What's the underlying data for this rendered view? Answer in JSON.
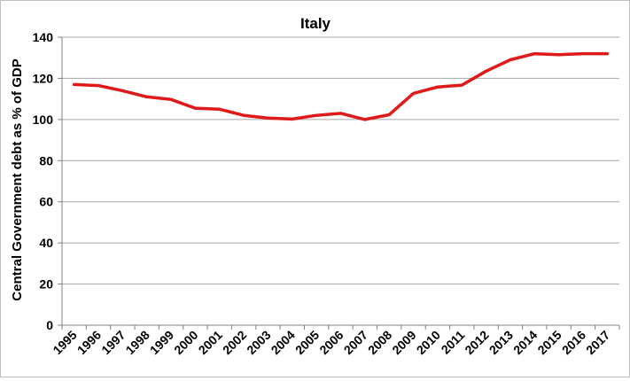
{
  "chart_data": {
    "type": "line",
    "title": "Italy",
    "xlabel": "",
    "ylabel": "Central Government debt as % of GDP",
    "ylim": [
      0,
      140
    ],
    "yticks": [
      0,
      20,
      40,
      60,
      80,
      100,
      120,
      140
    ],
    "grid": true,
    "legend": "none",
    "line_color": "#e0191b",
    "categories": [
      "1995",
      "1996",
      "1997",
      "1998",
      "1999",
      "2000",
      "2001",
      "2002",
      "2003",
      "2004",
      "2005",
      "2006",
      "2007",
      "2008",
      "2009",
      "2010",
      "2011",
      "2012",
      "2013",
      "2014",
      "2015",
      "2016",
      "2017"
    ],
    "values": [
      117,
      116.5,
      114,
      111,
      109.7,
      105.5,
      105,
      102,
      100.7,
      100.2,
      102,
      103,
      100,
      102.3,
      112.7,
      115.8,
      116.7,
      123.5,
      129,
      132,
      131.5,
      132,
      132
    ]
  }
}
